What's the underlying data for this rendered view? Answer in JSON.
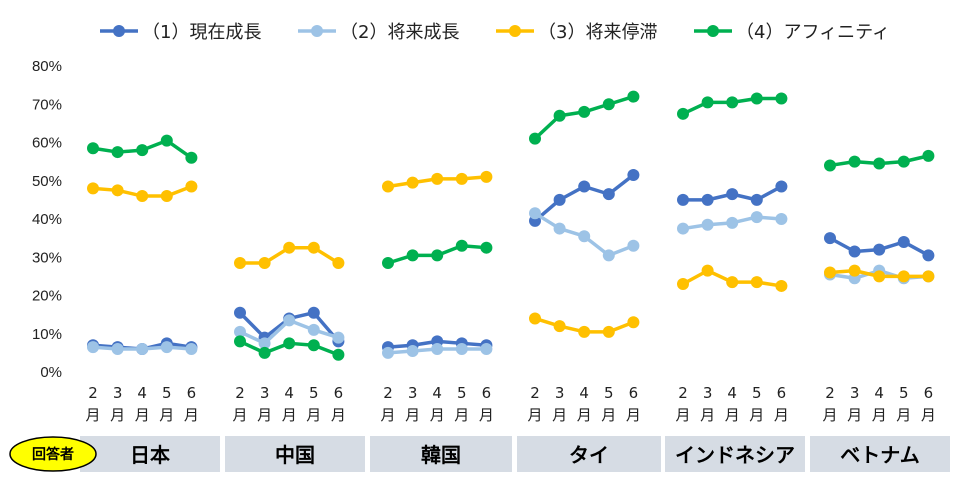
{
  "chart_data": {
    "type": "line",
    "yticks": [
      "0%",
      "10%",
      "20%",
      "30%",
      "40%",
      "50%",
      "60%",
      "70%",
      "80%"
    ],
    "ylim": [
      0,
      80
    ],
    "grid": false,
    "legend_position": "top",
    "x_month_numbers": [
      "2",
      "3",
      "4",
      "5",
      "6"
    ],
    "x_month_unit": "月",
    "badge": "回答者",
    "groups": [
      "日本",
      "中国",
      "韓国",
      "タイ",
      "インドネシア",
      "ベトナム"
    ],
    "series": [
      {
        "name": "（1）現在成長",
        "color": "#4472C4",
        "values": [
          [
            7,
            6.5,
            6,
            7.5,
            6.5
          ],
          [
            15.5,
            9,
            14,
            15.5,
            8
          ],
          [
            6.5,
            7,
            8,
            7.5,
            7
          ],
          [
            39.5,
            45,
            48.5,
            46.5,
            51.5
          ],
          [
            45,
            45,
            46.5,
            45,
            48.5
          ],
          [
            35,
            31.5,
            32,
            34,
            30.5
          ]
        ]
      },
      {
        "name": "（2）将来成長",
        "color": "#9DC3E6",
        "values": [
          [
            6.5,
            6,
            6,
            6.5,
            6
          ],
          [
            10.5,
            7.5,
            13.5,
            11,
            9
          ],
          [
            5,
            5.5,
            6,
            6,
            6
          ],
          [
            41.5,
            37.5,
            35.5,
            30.5,
            33
          ],
          [
            37.5,
            38.5,
            39,
            40.5,
            40
          ],
          [
            25.5,
            24.5,
            26.5,
            24.5,
            25
          ]
        ]
      },
      {
        "name": "（3）将来停滞",
        "color": "#FFC000",
        "values": [
          [
            48,
            47.5,
            46,
            46,
            48.5
          ],
          [
            28.5,
            28.5,
            32.5,
            32.5,
            28.5
          ],
          [
            48.5,
            49.5,
            50.5,
            50.5,
            51
          ],
          [
            14,
            12,
            10.5,
            10.5,
            13
          ],
          [
            23,
            26.5,
            23.5,
            23.5,
            22.5
          ],
          [
            26,
            26.5,
            25,
            25,
            25
          ]
        ]
      },
      {
        "name": "（4）アフィニティ",
        "color": "#00B050",
        "values": [
          [
            58.5,
            57.5,
            58,
            60.5,
            56
          ],
          [
            8,
            5,
            7.5,
            7,
            4.5
          ],
          [
            28.5,
            30.5,
            30.5,
            33,
            32.5
          ],
          [
            61,
            67,
            68,
            70,
            72
          ],
          [
            67.5,
            70.5,
            70.5,
            71.5,
            71.5
          ],
          [
            54,
            55,
            54.5,
            55,
            56.5
          ]
        ]
      }
    ]
  }
}
